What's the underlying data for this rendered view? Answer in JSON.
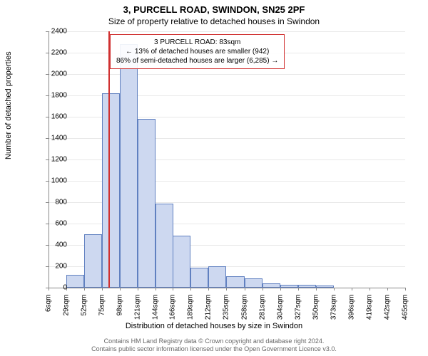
{
  "title_main": "3, PURCELL ROAD, SWINDON, SN25 2PF",
  "title_sub": "Size of property relative to detached houses in Swindon",
  "ylabel": "Number of detached properties",
  "xlabel": "Distribution of detached houses by size in Swindon",
  "chart": {
    "type": "histogram",
    "ylim": [
      0,
      2400
    ],
    "ytick_step": 200,
    "xticks": [
      6,
      29,
      52,
      75,
      98,
      121,
      144,
      166,
      189,
      212,
      235,
      258,
      281,
      304,
      327,
      350,
      373,
      396,
      419,
      442,
      465
    ],
    "xtick_unit": "sqm",
    "bar_fill": "#cdd8f0",
    "bar_stroke": "#6080c0",
    "grid_color": "#e8e8e8",
    "ref_line_color": "#d03030",
    "ref_line_x": 83,
    "bars": [
      {
        "x": 6,
        "count": 0
      },
      {
        "x": 29,
        "count": 120
      },
      {
        "x": 52,
        "count": 500
      },
      {
        "x": 75,
        "count": 1820
      },
      {
        "x": 98,
        "count": 2280
      },
      {
        "x": 121,
        "count": 1580
      },
      {
        "x": 144,
        "count": 790
      },
      {
        "x": 166,
        "count": 490
      },
      {
        "x": 189,
        "count": 190
      },
      {
        "x": 212,
        "count": 200
      },
      {
        "x": 235,
        "count": 110
      },
      {
        "x": 258,
        "count": 90
      },
      {
        "x": 281,
        "count": 40
      },
      {
        "x": 304,
        "count": 30
      },
      {
        "x": 327,
        "count": 30
      },
      {
        "x": 350,
        "count": 20
      },
      {
        "x": 373,
        "count": 0
      },
      {
        "x": 396,
        "count": 0
      },
      {
        "x": 419,
        "count": 0
      },
      {
        "x": 442,
        "count": 0
      }
    ]
  },
  "annotation": {
    "line1": "3 PURCELL ROAD: 83sqm",
    "line2": "← 13% of detached houses are smaller (942)",
    "line3": "86% of semi-detached houses are larger (6,285) →"
  },
  "footer": {
    "line1": "Contains HM Land Registry data © Crown copyright and database right 2024.",
    "line2": "Contains public sector information licensed under the Open Government Licence v3.0."
  }
}
